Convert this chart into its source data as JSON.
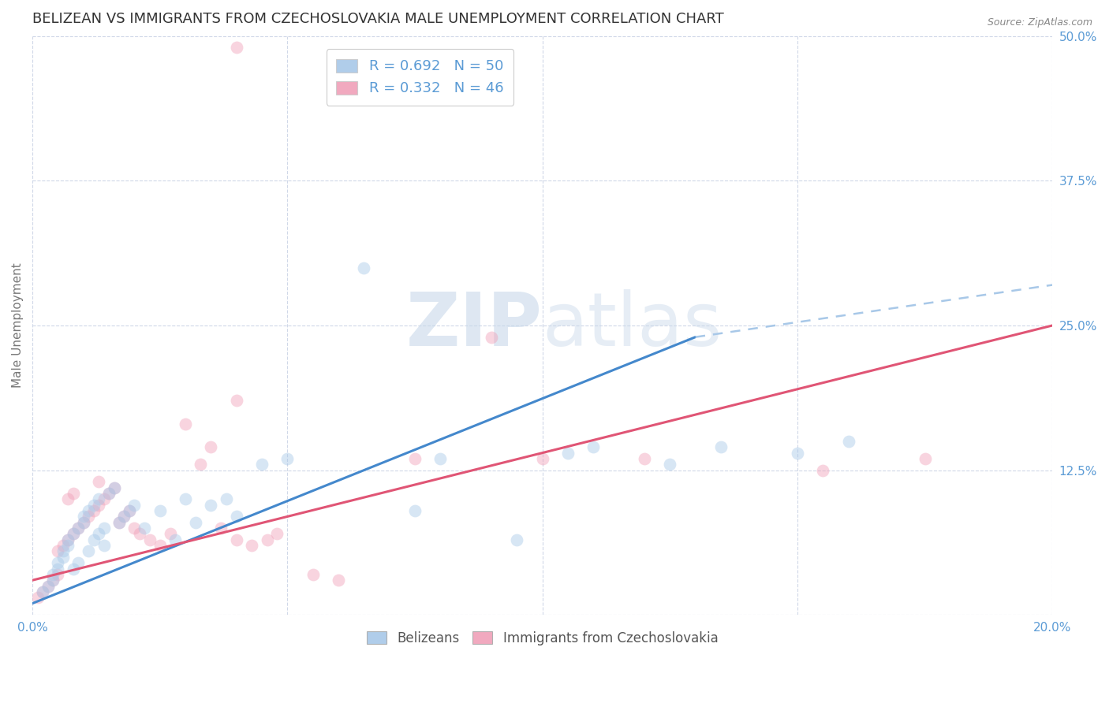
{
  "title": "BELIZEAN VS IMMIGRANTS FROM CZECHOSLOVAKIA MALE UNEMPLOYMENT CORRELATION CHART",
  "source": "Source: ZipAtlas.com",
  "ylabel": "Male Unemployment",
  "xlim": [
    0.0,
    0.2
  ],
  "ylim": [
    0.0,
    0.5
  ],
  "xticks": [
    0.0,
    0.05,
    0.1,
    0.15,
    0.2
  ],
  "yticks": [
    0.0,
    0.125,
    0.25,
    0.375,
    0.5
  ],
  "xtick_labels": [
    "0.0%",
    "",
    "",
    "",
    "20.0%"
  ],
  "ytick_labels": [
    "",
    "12.5%",
    "25.0%",
    "37.5%",
    "50.0%"
  ],
  "blue_color": "#a8c8e8",
  "pink_color": "#f0a0b8",
  "blue_line_color": "#4488cc",
  "pink_line_color": "#e05575",
  "dashed_line_color": "#a8c8e8",
  "label_color": "#5b9bd5",
  "grid_color": "#d0d8e8",
  "background_color": "#ffffff",
  "legend_R1": "R = 0.692",
  "legend_N1": "N = 50",
  "legend_R2": "R = 0.332",
  "legend_N2": "N = 46",
  "blue_label": "Belizeans",
  "pink_label": "Immigrants from Czechoslovakia",
  "blue_scatter_x": [
    0.002,
    0.003,
    0.004,
    0.004,
    0.005,
    0.005,
    0.006,
    0.006,
    0.007,
    0.007,
    0.008,
    0.008,
    0.009,
    0.009,
    0.01,
    0.01,
    0.011,
    0.011,
    0.012,
    0.012,
    0.013,
    0.013,
    0.014,
    0.014,
    0.015,
    0.016,
    0.017,
    0.018,
    0.019,
    0.02,
    0.022,
    0.025,
    0.028,
    0.03,
    0.032,
    0.035,
    0.038,
    0.04,
    0.045,
    0.05,
    0.065,
    0.075,
    0.08,
    0.095,
    0.105,
    0.11,
    0.125,
    0.135,
    0.15,
    0.16
  ],
  "blue_scatter_y": [
    0.02,
    0.025,
    0.03,
    0.035,
    0.04,
    0.045,
    0.05,
    0.055,
    0.06,
    0.065,
    0.07,
    0.04,
    0.075,
    0.045,
    0.08,
    0.085,
    0.09,
    0.055,
    0.095,
    0.065,
    0.07,
    0.1,
    0.075,
    0.06,
    0.105,
    0.11,
    0.08,
    0.085,
    0.09,
    0.095,
    0.075,
    0.09,
    0.065,
    0.1,
    0.08,
    0.095,
    0.1,
    0.085,
    0.13,
    0.135,
    0.3,
    0.09,
    0.135,
    0.065,
    0.14,
    0.145,
    0.13,
    0.145,
    0.14,
    0.15
  ],
  "pink_scatter_x": [
    0.001,
    0.002,
    0.003,
    0.004,
    0.005,
    0.005,
    0.006,
    0.007,
    0.007,
    0.008,
    0.008,
    0.009,
    0.01,
    0.011,
    0.012,
    0.013,
    0.013,
    0.014,
    0.015,
    0.016,
    0.017,
    0.018,
    0.019,
    0.02,
    0.021,
    0.023,
    0.025,
    0.027,
    0.03,
    0.033,
    0.035,
    0.037,
    0.04,
    0.043,
    0.046,
    0.048,
    0.04,
    0.055,
    0.06,
    0.075,
    0.04,
    0.09,
    0.1,
    0.12,
    0.155,
    0.175
  ],
  "pink_scatter_y": [
    0.015,
    0.02,
    0.025,
    0.03,
    0.035,
    0.055,
    0.06,
    0.065,
    0.1,
    0.07,
    0.105,
    0.075,
    0.08,
    0.085,
    0.09,
    0.095,
    0.115,
    0.1,
    0.105,
    0.11,
    0.08,
    0.085,
    0.09,
    0.075,
    0.07,
    0.065,
    0.06,
    0.07,
    0.165,
    0.13,
    0.145,
    0.075,
    0.065,
    0.06,
    0.065,
    0.07,
    0.185,
    0.035,
    0.03,
    0.135,
    0.49,
    0.24,
    0.135,
    0.135,
    0.125,
    0.135
  ],
  "blue_fit_x": [
    0.0,
    0.13
  ],
  "blue_fit_y": [
    0.01,
    0.24
  ],
  "dashed_fit_x": [
    0.13,
    0.2
  ],
  "dashed_fit_y": [
    0.24,
    0.285
  ],
  "pink_fit_x": [
    0.0,
    0.2
  ],
  "pink_fit_y": [
    0.03,
    0.25
  ],
  "watermark_zip": "ZIP",
  "watermark_atlas": "atlas",
  "marker_size": 130,
  "marker_alpha": 0.45,
  "title_fontsize": 13,
  "axis_label_fontsize": 11,
  "tick_fontsize": 11,
  "source_fontsize": 9
}
